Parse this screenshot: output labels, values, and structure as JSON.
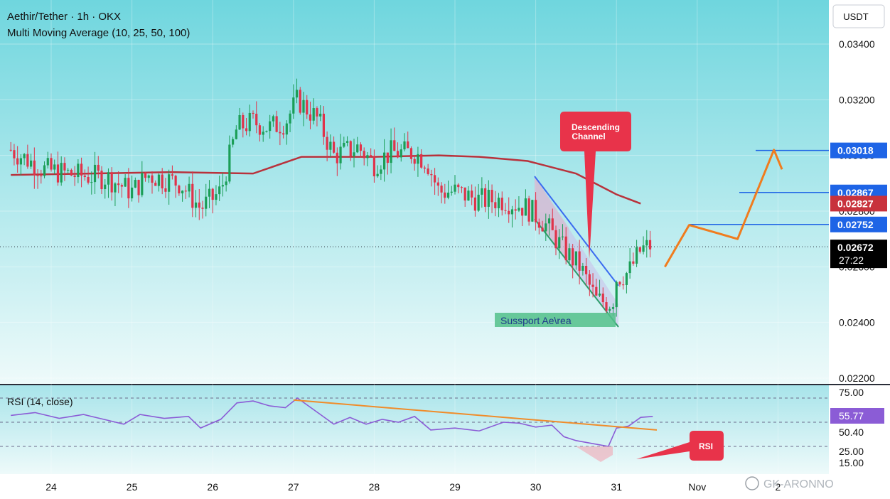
{
  "header": {
    "title": "Aethir/Tether · 1h · OKX",
    "indicator": "Multi Moving Average (10, 25, 50, 100)"
  },
  "currency": "USDT",
  "watermark": "GK-ARONNO",
  "colors": {
    "background_top": "#6fd6de",
    "background_bottom": "#eefafa",
    "up": "#1b9e57",
    "down": "#e0334a",
    "ma": "#b8323c",
    "blue_label": "#1e64e6",
    "red_label": "#c8323c",
    "projection": "#f07c1e",
    "rsi_line": "#8b5cd6",
    "rsi_trend": "#f08c2a",
    "channel_top": "#3b6cf0",
    "channel_bottom": "#2c9e6a"
  },
  "annotations": {
    "descending_channel": "Descending\nChannel",
    "support_area": "Sussport Ae\\rea",
    "rsi_callout": "RSI"
  },
  "rsi": {
    "label": "RSI (14, close)",
    "value": 55.77,
    "levels": [
      75,
      50.4,
      25,
      15
    ]
  },
  "chart_data": {
    "type": "candlestick",
    "xlabels": [
      "24",
      "25",
      "26",
      "27",
      "28",
      "29",
      "30",
      "31",
      "Nov",
      "2"
    ],
    "y_ticks": [
      0.034,
      0.032,
      0.03,
      0.028,
      0.026,
      0.024,
      0.022
    ],
    "y_tick_labels": [
      "0.03400",
      "0.03200",
      "0.03000",
      "0.02800",
      "0.02600",
      "0.02400",
      "0.02200"
    ],
    "ylim": [
      0.0216,
      0.0352
    ],
    "price_labels": [
      {
        "value": 0.03018,
        "label": "0.03018",
        "kind": "blue"
      },
      {
        "value": 0.02867,
        "label": "0.02867",
        "kind": "blue"
      },
      {
        "value": 0.02827,
        "label": "0.02827",
        "kind": "red"
      },
      {
        "value": 0.02752,
        "label": "0.02752",
        "kind": "blue"
      }
    ],
    "last_price": {
      "value": 0.02672,
      "label": "0.02672",
      "countdown": "27:22"
    },
    "resistance_levels": [
      0.03018,
      0.02867,
      0.02752
    ],
    "ma_path": [
      [
        23.5,
        0.0293
      ],
      [
        24.5,
        0.02935
      ],
      [
        25.5,
        0.0294
      ],
      [
        26.5,
        0.02935
      ],
      [
        27.1,
        0.02995
      ],
      [
        28,
        0.02995
      ],
      [
        28.8,
        0.03
      ],
      [
        29.3,
        0.02995
      ],
      [
        29.9,
        0.0298
      ],
      [
        30.5,
        0.02935
      ],
      [
        31.0,
        0.0286
      ],
      [
        31.3,
        0.02827
      ]
    ],
    "close_path": [
      [
        23.5,
        0.0302
      ],
      [
        23.9,
        0.0295
      ],
      [
        24.3,
        0.0293
      ],
      [
        24.7,
        0.0292
      ],
      [
        25.0,
        0.0287
      ],
      [
        25.2,
        0.0293
      ],
      [
        25.6,
        0.029
      ],
      [
        25.85,
        0.0281
      ],
      [
        26.1,
        0.0287
      ],
      [
        26.3,
        0.031
      ],
      [
        26.5,
        0.0312
      ],
      [
        26.7,
        0.031
      ],
      [
        26.9,
        0.0312
      ],
      [
        27.05,
        0.032
      ],
      [
        27.3,
        0.0313
      ],
      [
        27.5,
        0.03
      ],
      [
        27.8,
        0.0303
      ],
      [
        28.0,
        0.0297
      ],
      [
        28.2,
        0.0301
      ],
      [
        28.5,
        0.0301
      ],
      [
        28.65,
        0.0298
      ],
      [
        28.8,
        0.0287
      ],
      [
        29.0,
        0.0287
      ],
      [
        29.3,
        0.0284
      ],
      [
        29.6,
        0.0284
      ],
      [
        29.9,
        0.0281
      ],
      [
        30.1,
        0.0276
      ],
      [
        30.35,
        0.0266
      ],
      [
        30.55,
        0.026
      ],
      [
        30.75,
        0.0248
      ],
      [
        30.95,
        0.0247
      ],
      [
        31.0,
        0.0256
      ],
      [
        31.15,
        0.0258
      ],
      [
        31.3,
        0.0266
      ],
      [
        31.45,
        0.0268
      ]
    ],
    "projection": [
      [
        31.6,
        0.026
      ],
      [
        31.9,
        0.0275
      ],
      [
        32.5,
        0.027
      ],
      [
        32.95,
        0.0302
      ],
      [
        33.05,
        0.0295
      ]
    ],
    "rsi_series": [
      [
        23.5,
        57
      ],
      [
        23.8,
        60
      ],
      [
        24.1,
        54
      ],
      [
        24.4,
        58
      ],
      [
        24.7,
        52
      ],
      [
        24.9,
        48
      ],
      [
        25.1,
        58
      ],
      [
        25.4,
        54
      ],
      [
        25.7,
        56
      ],
      [
        25.85,
        44
      ],
      [
        26.1,
        53
      ],
      [
        26.3,
        70
      ],
      [
        26.5,
        72
      ],
      [
        26.7,
        67
      ],
      [
        26.9,
        65
      ],
      [
        27.05,
        75
      ],
      [
        27.3,
        60
      ],
      [
        27.5,
        48
      ],
      [
        27.7,
        55
      ],
      [
        27.9,
        48
      ],
      [
        28.1,
        53
      ],
      [
        28.3,
        50
      ],
      [
        28.5,
        56
      ],
      [
        28.7,
        42
      ],
      [
        29.0,
        44
      ],
      [
        29.3,
        41
      ],
      [
        29.6,
        50
      ],
      [
        29.8,
        49
      ],
      [
        30.0,
        45
      ],
      [
        30.2,
        47
      ],
      [
        30.35,
        35
      ],
      [
        30.5,
        31
      ],
      [
        30.7,
        28
      ],
      [
        30.9,
        25
      ],
      [
        31.0,
        44
      ],
      [
        31.15,
        46
      ],
      [
        31.3,
        55
      ],
      [
        31.45,
        56
      ]
    ],
    "rsi_trendline": [
      [
        27.0,
        73
      ],
      [
        31.5,
        42
      ]
    ]
  }
}
